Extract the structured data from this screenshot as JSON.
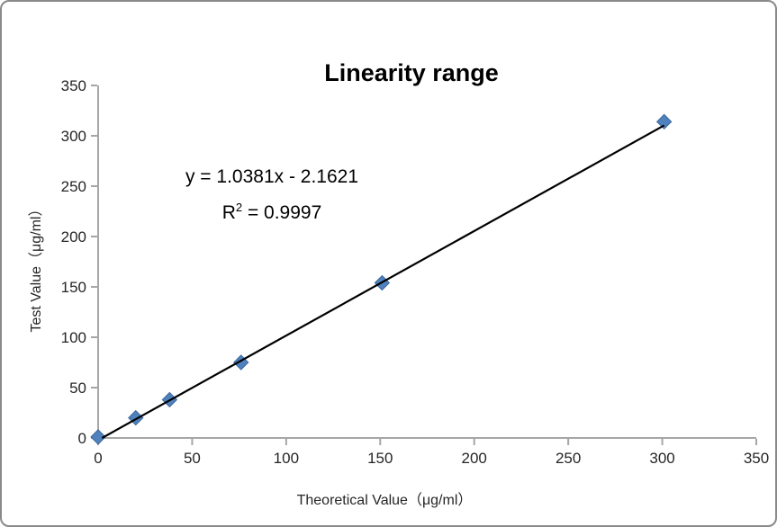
{
  "chart_data": {
    "type": "scatter",
    "title": "Linearity range",
    "xlabel": "Theoretical Value（μg/ml）",
    "ylabel": "Test Value（μg/ml）",
    "xlim": [
      0,
      350
    ],
    "ylim": [
      0,
      350
    ],
    "xticks": [
      0,
      50,
      100,
      150,
      200,
      250,
      300,
      350
    ],
    "yticks": [
      0,
      50,
      100,
      150,
      200,
      250,
      300,
      350
    ],
    "grid": false,
    "legend": "none",
    "points": [
      [
        0,
        1
      ],
      [
        20,
        20
      ],
      [
        38,
        38
      ],
      [
        76,
        75
      ],
      [
        151,
        154
      ],
      [
        301,
        314
      ]
    ],
    "trendline": {
      "slope": 1.0381,
      "intercept": -2.1621,
      "r2": 0.9997,
      "equation_text": "y = 1.0381x - 2.1621",
      "r2_prefix": "R",
      "r2_sup": "2",
      "r2_suffix": " = 0.9997",
      "color": "#000000"
    },
    "marker": {
      "shape": "diamond",
      "color": "#4f81bd",
      "stroke": "#3a679d",
      "size": 16
    },
    "axis_color": "#a6a6a6",
    "tick_label_color": "#262626"
  }
}
